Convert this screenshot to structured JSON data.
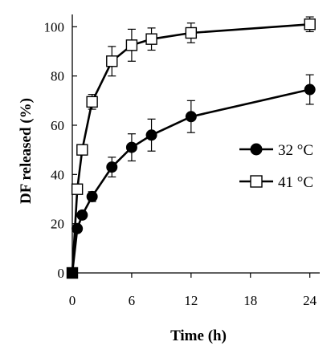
{
  "chart_data": {
    "type": "line",
    "xlabel": "Time (h)",
    "ylabel": "DF released (%)",
    "xlim": [
      0,
      25
    ],
    "ylim": [
      0,
      105
    ],
    "xticks": [
      0,
      6,
      12,
      18,
      24
    ],
    "yticks": [
      0,
      20,
      40,
      60,
      80,
      100
    ],
    "grid": false,
    "legend_position": "right",
    "series": [
      {
        "name": "32 °C",
        "marker": "filled-circle",
        "color": "#000000",
        "x": [
          0,
          0.5,
          1,
          2,
          4,
          6,
          8,
          12,
          24
        ],
        "y": [
          0,
          18,
          23.5,
          31,
          43,
          51,
          56,
          63.5,
          74.5
        ],
        "err": [
          0,
          1,
          1.5,
          2,
          4,
          5.5,
          6.5,
          6.5,
          6
        ]
      },
      {
        "name": "41 °C",
        "marker": "open-square",
        "color": "#000000",
        "x": [
          0,
          0.5,
          1,
          2,
          4,
          6,
          8,
          12,
          24
        ],
        "y": [
          0,
          34,
          50,
          69.5,
          86,
          92.5,
          95,
          97.5,
          101
        ],
        "err": [
          0,
          2,
          2,
          3,
          6,
          6.5,
          4.5,
          4,
          3
        ]
      }
    ]
  }
}
